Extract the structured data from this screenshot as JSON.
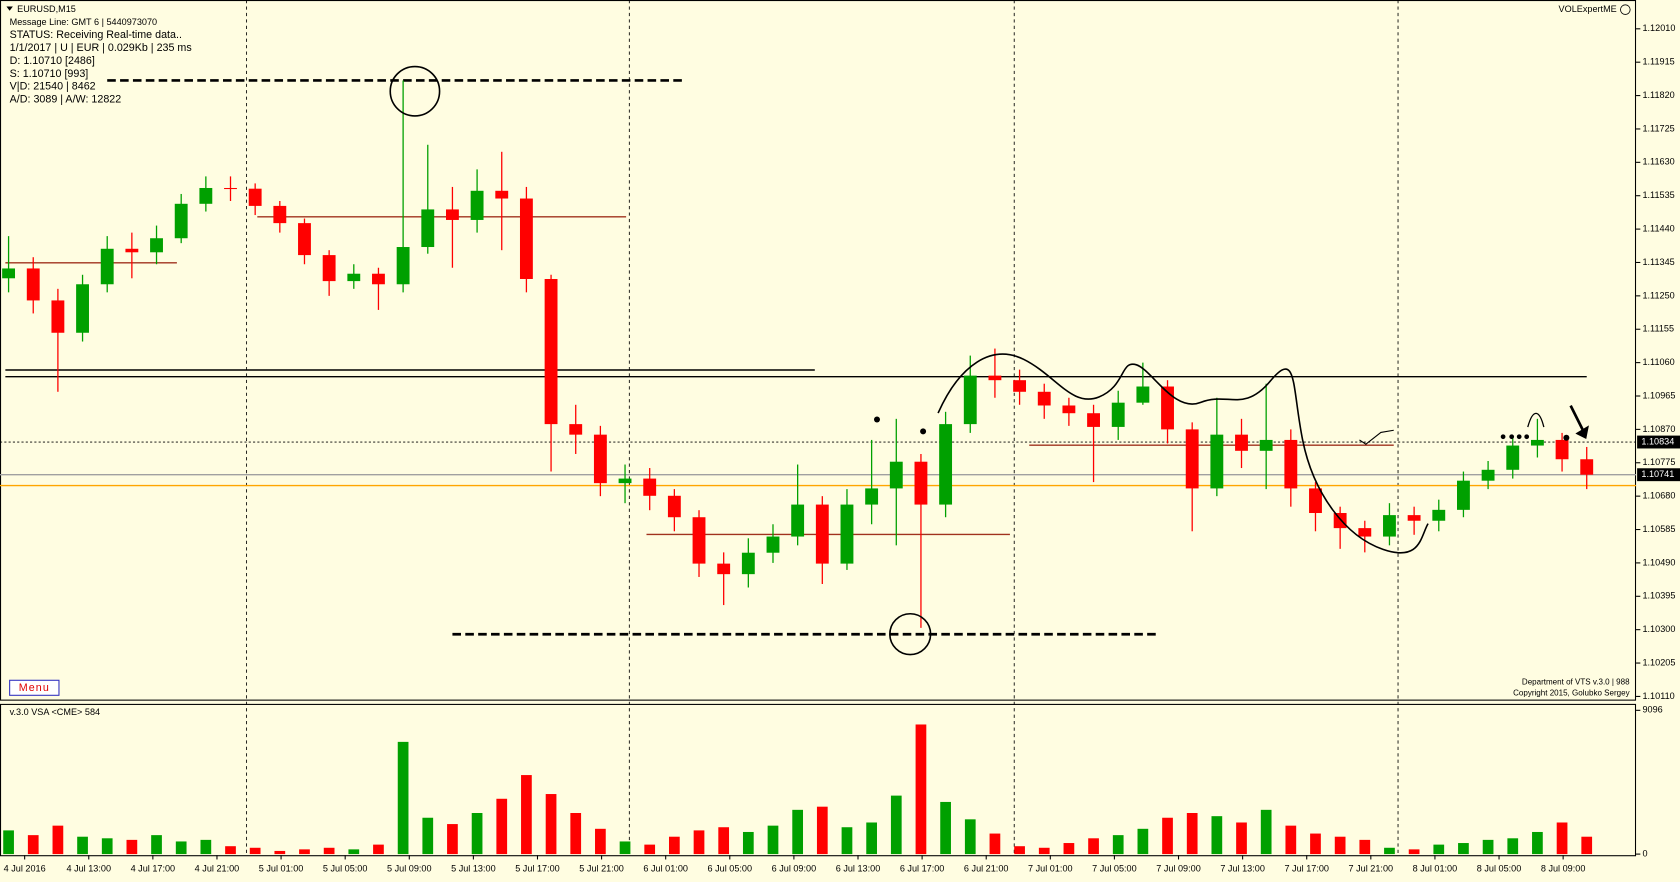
{
  "chart_data": {
    "type": "candlestick",
    "title": "EURUSD,M15",
    "info_lines": [
      "Message Line: GMT 6 | 5440973070",
      "STATUS:  Receiving Real-time data..",
      "1/1/2017 | U | EUR | 0.029Kb | 235 ms",
      "D: 1.10710  [2486]",
      "S: 1.10710  [993]",
      "V|D: 21540 | 8462",
      "A/D: 3089 | A/W: 12822"
    ],
    "brand": "VOLExpertME",
    "menu_label": "Menu",
    "indicator_label": "v.3.0 VSA <CME> 584",
    "footer_lines": [
      "Department of VTS  v.3.0 | 988",
      "Copyright 2015, Golubko Sergey"
    ],
    "up_color": "#00a000",
    "down_color": "#ff0000",
    "ylim": [
      1.10101,
      1.12092
    ],
    "yticks": [
      {
        "value": 1.1201,
        "label": "1.12010"
      },
      {
        "value": 1.11915,
        "label": "1.11915"
      },
      {
        "value": 1.1182,
        "label": "1.11820"
      },
      {
        "value": 1.11725,
        "label": "1.11725"
      },
      {
        "value": 1.1163,
        "label": "1.11630"
      },
      {
        "value": 1.11535,
        "label": "1.11535"
      },
      {
        "value": 1.1144,
        "label": "1.11440"
      },
      {
        "value": 1.11345,
        "label": "1.11345"
      },
      {
        "value": 1.1125,
        "label": "1.11250"
      },
      {
        "value": 1.11155,
        "label": "1.11155"
      },
      {
        "value": 1.1106,
        "label": "1.11060"
      },
      {
        "value": 1.10965,
        "label": "1.10965"
      },
      {
        "value": 1.1087,
        "label": "1.10870"
      },
      {
        "value": 1.10775,
        "label": "1.10775"
      },
      {
        "value": 1.1068,
        "label": "1.10680"
      },
      {
        "value": 1.10585,
        "label": "1.10585"
      },
      {
        "value": 1.1049,
        "label": "1.10490"
      },
      {
        "value": 1.10395,
        "label": "1.10395"
      },
      {
        "value": 1.103,
        "label": "1.10300"
      },
      {
        "value": 1.10205,
        "label": "1.10205"
      },
      {
        "value": 1.1011,
        "label": "1.10110"
      }
    ],
    "price_labels": [
      {
        "value": 1.10834,
        "label": "1.10834"
      },
      {
        "value": 1.10741,
        "label": "1.10741"
      }
    ],
    "levels": [
      {
        "value": 1.11863,
        "color": "#000000",
        "style": "dashed"
      },
      {
        "value": 1.10287,
        "color": "#000000",
        "style": "dashed"
      },
      {
        "value": 1.11039,
        "color": "#000000",
        "style": "solid"
      },
      {
        "value": 1.1102,
        "color": "#000000",
        "style": "solid"
      },
      {
        "value": 1.11344,
        "color": "#a0321e",
        "style": "solid"
      },
      {
        "value": 1.11475,
        "color": "#a0321e",
        "style": "solid"
      },
      {
        "value": 1.10571,
        "color": "#a0321e",
        "style": "solid"
      },
      {
        "value": 1.10825,
        "color": "#a0321e",
        "style": "solid"
      },
      {
        "value": 1.10834,
        "color": "#000000",
        "style": "dotted"
      },
      {
        "value": 1.1071,
        "color": "#ffa500",
        "style": "solid"
      },
      {
        "value": 1.10741,
        "color": "#a0a0a0",
        "style": "solid"
      }
    ],
    "time_labels": [
      "4 Jul 2016",
      "4 Jul 13:00",
      "4 Jul 17:00",
      "4 Jul 21:00",
      "5 Jul 01:00",
      "5 Jul 05:00",
      "5 Jul 09:00",
      "5 Jul 13:00",
      "5 Jul 17:00",
      "5 Jul 21:00",
      "6 Jul 01:00",
      "6 Jul 05:00",
      "6 Jul 09:00",
      "6 Jul 13:00",
      "6 Jul 17:00",
      "6 Jul 21:00",
      "7 Jul 01:00",
      "7 Jul 05:00",
      "7 Jul 09:00",
      "7 Jul 13:00",
      "7 Jul 17:00",
      "7 Jul 21:00",
      "8 Jul 01:00",
      "8 Jul 05:00",
      "8 Jul 09:00"
    ],
    "candles": [
      [
        1.113,
        1.1142,
        1.1126,
        1.11328
      ],
      [
        1.11328,
        1.1136,
        1.112,
        1.11237
      ],
      [
        1.11237,
        1.1127,
        1.10977,
        1.11145
      ],
      [
        1.11145,
        1.1131,
        1.1112,
        1.11283
      ],
      [
        1.11283,
        1.1142,
        1.1126,
        1.11384
      ],
      [
        1.11384,
        1.1143,
        1.113,
        1.11374
      ],
      [
        1.11374,
        1.1145,
        1.1134,
        1.11414
      ],
      [
        1.11414,
        1.1154,
        1.114,
        1.11512
      ],
      [
        1.11512,
        1.1159,
        1.1149,
        1.11557
      ],
      [
        1.11557,
        1.1159,
        1.1152,
        1.11555
      ],
      [
        1.11555,
        1.1157,
        1.1148,
        1.11506
      ],
      [
        1.11506,
        1.1152,
        1.1143,
        1.11457
      ],
      [
        1.11457,
        1.1147,
        1.1134,
        1.11366
      ],
      [
        1.11366,
        1.1138,
        1.1125,
        1.11292
      ],
      [
        1.11292,
        1.1134,
        1.1127,
        1.11313
      ],
      [
        1.11313,
        1.1133,
        1.1121,
        1.11283
      ],
      [
        1.11283,
        1.11863,
        1.1126,
        1.11389
      ],
      [
        1.11389,
        1.1168,
        1.1137,
        1.11496
      ],
      [
        1.11496,
        1.1156,
        1.1133,
        1.11466
      ],
      [
        1.11466,
        1.1161,
        1.1143,
        1.11549
      ],
      [
        1.11549,
        1.1166,
        1.1138,
        1.11527
      ],
      [
        1.11527,
        1.1156,
        1.1126,
        1.11298
      ],
      [
        1.11298,
        1.1131,
        1.1075,
        1.10885
      ],
      [
        1.10885,
        1.1094,
        1.108,
        1.10855
      ],
      [
        1.10855,
        1.1088,
        1.1068,
        1.10717
      ],
      [
        1.10717,
        1.1077,
        1.1066,
        1.1073
      ],
      [
        1.1073,
        1.1076,
        1.1064,
        1.10681
      ],
      [
        1.10681,
        1.107,
        1.1058,
        1.1062
      ],
      [
        1.1062,
        1.1064,
        1.1045,
        1.10488
      ],
      [
        1.10488,
        1.1052,
        1.1037,
        1.10458
      ],
      [
        1.10458,
        1.1056,
        1.1042,
        1.10519
      ],
      [
        1.10519,
        1.106,
        1.1049,
        1.10565
      ],
      [
        1.10565,
        1.1077,
        1.1054,
        1.10656
      ],
      [
        1.10656,
        1.1068,
        1.1043,
        1.10488
      ],
      [
        1.10488,
        1.107,
        1.1047,
        1.10656
      ],
      [
        1.10656,
        1.1084,
        1.106,
        1.10702
      ],
      [
        1.10702,
        1.109,
        1.1054,
        1.10778
      ],
      [
        1.10778,
        1.108,
        1.10305,
        1.10656
      ],
      [
        1.10656,
        1.1092,
        1.1062,
        1.10885
      ],
      [
        1.10885,
        1.1108,
        1.1086,
        1.11023
      ],
      [
        1.11023,
        1.111,
        1.1096,
        1.1101
      ],
      [
        1.1101,
        1.1104,
        1.1094,
        1.10977
      ],
      [
        1.10977,
        1.11,
        1.109,
        1.10938
      ],
      [
        1.10938,
        1.1096,
        1.1088,
        1.10916
      ],
      [
        1.10916,
        1.1094,
        1.1072,
        1.10877
      ],
      [
        1.10877,
        1.1098,
        1.1084,
        1.10946
      ],
      [
        1.10946,
        1.1106,
        1.1094,
        1.10992
      ],
      [
        1.10992,
        1.1101,
        1.1083,
        1.1087
      ],
      [
        1.1087,
        1.1089,
        1.1058,
        1.10702
      ],
      [
        1.10702,
        1.1096,
        1.1068,
        1.10855
      ],
      [
        1.10855,
        1.109,
        1.1076,
        1.10809
      ],
      [
        1.10809,
        1.11,
        1.107,
        1.1084
      ],
      [
        1.1084,
        1.1087,
        1.1065,
        1.10702
      ],
      [
        1.10702,
        1.1072,
        1.1058,
        1.10632
      ],
      [
        1.10632,
        1.1065,
        1.1053,
        1.10589
      ],
      [
        1.10589,
        1.1061,
        1.1052,
        1.10565
      ],
      [
        1.10565,
        1.1066,
        1.1054,
        1.10626
      ],
      [
        1.10626,
        1.1065,
        1.1057,
        1.1061
      ],
      [
        1.1061,
        1.1067,
        1.1058,
        1.10641
      ],
      [
        1.10641,
        1.1075,
        1.1062,
        1.10724
      ],
      [
        1.10724,
        1.1078,
        1.107,
        1.10755
      ],
      [
        1.10755,
        1.1085,
        1.1073,
        1.10824
      ],
      [
        1.10824,
        1.109,
        1.1079,
        1.1084
      ],
      [
        1.1084,
        1.1086,
        1.1075,
        1.10785
      ],
      [
        1.10785,
        1.1082,
        1.107,
        1.10741
      ]
    ],
    "volumes": [
      1500,
      1200,
      1800,
      1100,
      1000,
      900,
      1200,
      800,
      900,
      500,
      400,
      200,
      300,
      400,
      300,
      600,
      7100,
      2300,
      1900,
      2600,
      3500,
      5000,
      3800,
      2600,
      1600,
      800,
      600,
      1100,
      1500,
      1700,
      1400,
      1800,
      2800,
      3000,
      1700,
      2000,
      3700,
      8200,
      3300,
      2200,
      1300,
      500,
      400,
      700,
      1000,
      1200,
      1600,
      2300,
      2600,
      2400,
      2000,
      2800,
      1800,
      1300,
      1100,
      900,
      400,
      300,
      600,
      700,
      900,
      1000,
      1400,
      2000,
      1100
    ],
    "volume_ylim": [
      0,
      9096
    ],
    "volume_yticks": [
      0,
      9096
    ]
  }
}
